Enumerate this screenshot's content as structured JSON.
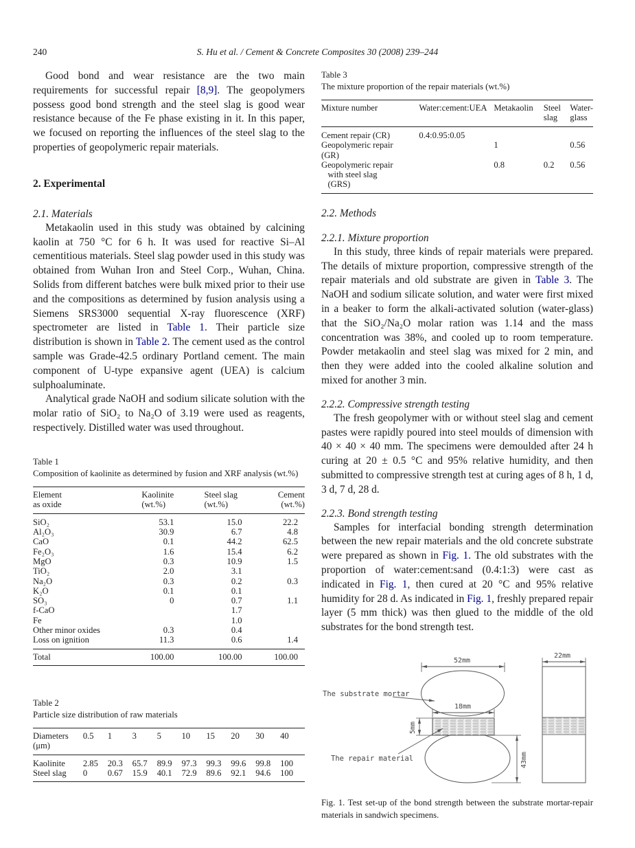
{
  "page": {
    "number": "240",
    "running_head": "S. Hu et al. / Cement & Concrete Composites 30 (2008) 239–244"
  },
  "left": {
    "intro_segments": [
      {
        "t": "Good bond and wear resistance are the two main requirements for successful repair "
      },
      {
        "t": "[8,9]",
        "link": true
      },
      {
        "t": ". The geopolymers possess good bond strength and the steel slag is good wear resistance because of the Fe phase existing in it. In this paper, we focused on reporting the influences of the steel slag to the properties of geopolymeric repair materials."
      }
    ],
    "h_experimental": "2. Experimental",
    "h_materials": "2.1. Materials",
    "materials_p1_segments": [
      {
        "t": "Metakaolin used in this study was obtained by calcining kaolin at 750 °C for 6 h. It was used for reactive Si–Al cementitious materials. Steel slag powder used in this study was obtained from Wuhan Iron and Steel Corp., Wuhan, China. Solids from different batches were bulk mixed prior to their use and the compositions as determined by fusion analysis using a Siemens SRS3000 sequential X-ray fluorescence (XRF) spectrometer are listed in "
      },
      {
        "t": "Table 1",
        "link": true
      },
      {
        "t": ". Their particle size distribution is shown in "
      },
      {
        "t": "Table 2",
        "link": true
      },
      {
        "t": ". The cement used as the control sample was Grade-42.5 ordinary Portland cement. The main component of U-type expansive agent (UEA) is calcium sulphoaluminate."
      }
    ],
    "materials_p2": "Analytical grade NaOH and sodium silicate solution with the molar ratio of SiO₂ to Na₂O of 3.19 were used as reagents, respectively. Distilled water was used throughout."
  },
  "right": {
    "h_methods": "2.2. Methods",
    "h_mixture": "2.2.1. Mixture proportion",
    "mixture_segments": [
      {
        "t": "In this study, three kinds of repair materials were prepared. The details of mixture proportion, compressive strength of the repair materials and old substrate are given in "
      },
      {
        "t": "Table 3",
        "link": true
      },
      {
        "t": ". The NaOH and sodium silicate solution, and water were first mixed in a beaker to form the alkali-activated solution (water-glass) that the SiO₂/Na₂O molar ration was 1.14 and the mass concentration was 38%, and cooled up to room temperature. Powder metakaolin and steel slag was mixed for 2 min, and then they were added into the cooled alkaline solution and mixed for another 3 min."
      }
    ],
    "h_compressive": "2.2.2. Compressive strength testing",
    "compressive_p": "The fresh geopolymer with or without steel slag and cement pastes were rapidly poured into steel moulds of dimension with 40 × 40 × 40 mm. The specimens were demoulded after 24 h curing at 20 ± 0.5 °C and 95% relative humidity, and then submitted to compressive strength test at curing ages of 8 h, 1 d, 3 d, 7 d, 28 d.",
    "h_bond": "2.2.3. Bond strength testing",
    "bond_segments": [
      {
        "t": "Samples for interfacial bonding strength determination between the new repair materials and the old concrete substrate were prepared as shown in "
      },
      {
        "t": "Fig. 1",
        "link": true
      },
      {
        "t": ". The old substrates with the proportion of water:cement:sand (0.4:1:3) were cast as indicated in "
      },
      {
        "t": "Fig. 1",
        "link": true
      },
      {
        "t": ", then cured at 20 °C and 95% relative humidity for 28 d. As indicated in "
      },
      {
        "t": "Fig. 1",
        "link": true
      },
      {
        "t": ", freshly prepared repair layer (5 mm thick) was then glued to the middle of the old substrates for the bond strength test."
      }
    ]
  },
  "tables": {
    "table1": {
      "label": "Table 1",
      "caption": "Composition of kaolinite as determined by fusion and XRF analysis (wt.%)",
      "headers": [
        "Element\nas oxide",
        "Kaolinite\n(wt.%)",
        "Steel slag\n(wt.%)",
        "Cement\n(wt.%)"
      ],
      "rows": [
        [
          "SiO₂",
          "53.1",
          "15.0",
          "22.2"
        ],
        [
          "Al₂O₃",
          "30.9",
          "6.7",
          "4.8"
        ],
        [
          "CaO",
          "0.1",
          "44.2",
          "62.5"
        ],
        [
          "Fe₂O₃",
          "1.6",
          "15.4",
          "6.2"
        ],
        [
          "MgO",
          "0.3",
          "10.9",
          "1.5"
        ],
        [
          "TiO₂",
          "2.0",
          "3.1",
          ""
        ],
        [
          "Na₂O",
          "0.3",
          "0.2",
          "0.3"
        ],
        [
          "K₂O",
          "0.1",
          "0.1",
          ""
        ],
        [
          "SO₃",
          "0",
          "0.7",
          "1.1"
        ],
        [
          "f-CaO",
          "",
          "1.7",
          ""
        ],
        [
          "Fe",
          "",
          "1.0",
          ""
        ],
        [
          "Other minor oxides",
          "0.3",
          "0.4",
          ""
        ],
        [
          "Loss on ignition",
          "11.3",
          "0.6",
          "1.4"
        ]
      ],
      "total_rows": [
        [
          "Total",
          "100.00",
          "100.00",
          "100.00"
        ]
      ]
    },
    "table2": {
      "label": "Table 2",
      "caption": "Particle size distribution of raw materials",
      "headers": [
        "Diameters\n(μm)",
        "0.5",
        "1",
        "3",
        "5",
        "10",
        "15",
        "20",
        "30",
        "40"
      ],
      "rows": [
        [
          "Kaolinite",
          "2.85",
          "20.3",
          "65.7",
          "89.9",
          "97.3",
          "99.3",
          "99.6",
          "99.8",
          "100"
        ],
        [
          "Steel slag",
          "0",
          "0.67",
          "15.9",
          "40.1",
          "72.9",
          "89.6",
          "92.1",
          "94.6",
          "100"
        ]
      ]
    },
    "table3": {
      "label": "Table 3",
      "caption": "The mixture proportion of the repair materials (wt.%)",
      "headers": [
        "Mixture number",
        "Water:cement:UEA",
        "Metakaolin",
        "Steel\nslag",
        "Water-\nglass"
      ],
      "rows": [
        [
          "Cement repair (CR)",
          "0.4:0.95:0.05",
          "",
          "",
          ""
        ],
        [
          "Geopolymeric repair\n(GR)",
          "",
          "1",
          "",
          "0.56"
        ],
        [
          "Geopolymeric repair\n   with steel slag\n   (GRS)",
          "",
          "0.8",
          "0.2",
          "0.56"
        ]
      ]
    }
  },
  "figure1": {
    "caption": "Fig. 1. Test set-up of the bond strength between the substrate mortar-repair materials in sandwich specimens.",
    "labels": {
      "substrate": "The substrate mortar",
      "repair": "The repair material"
    },
    "dims": {
      "top_width": "52mm",
      "repair_width": "18mm",
      "repair_thickness": "5mm",
      "bottom_height": "43mm",
      "side_width": "22mm"
    }
  }
}
